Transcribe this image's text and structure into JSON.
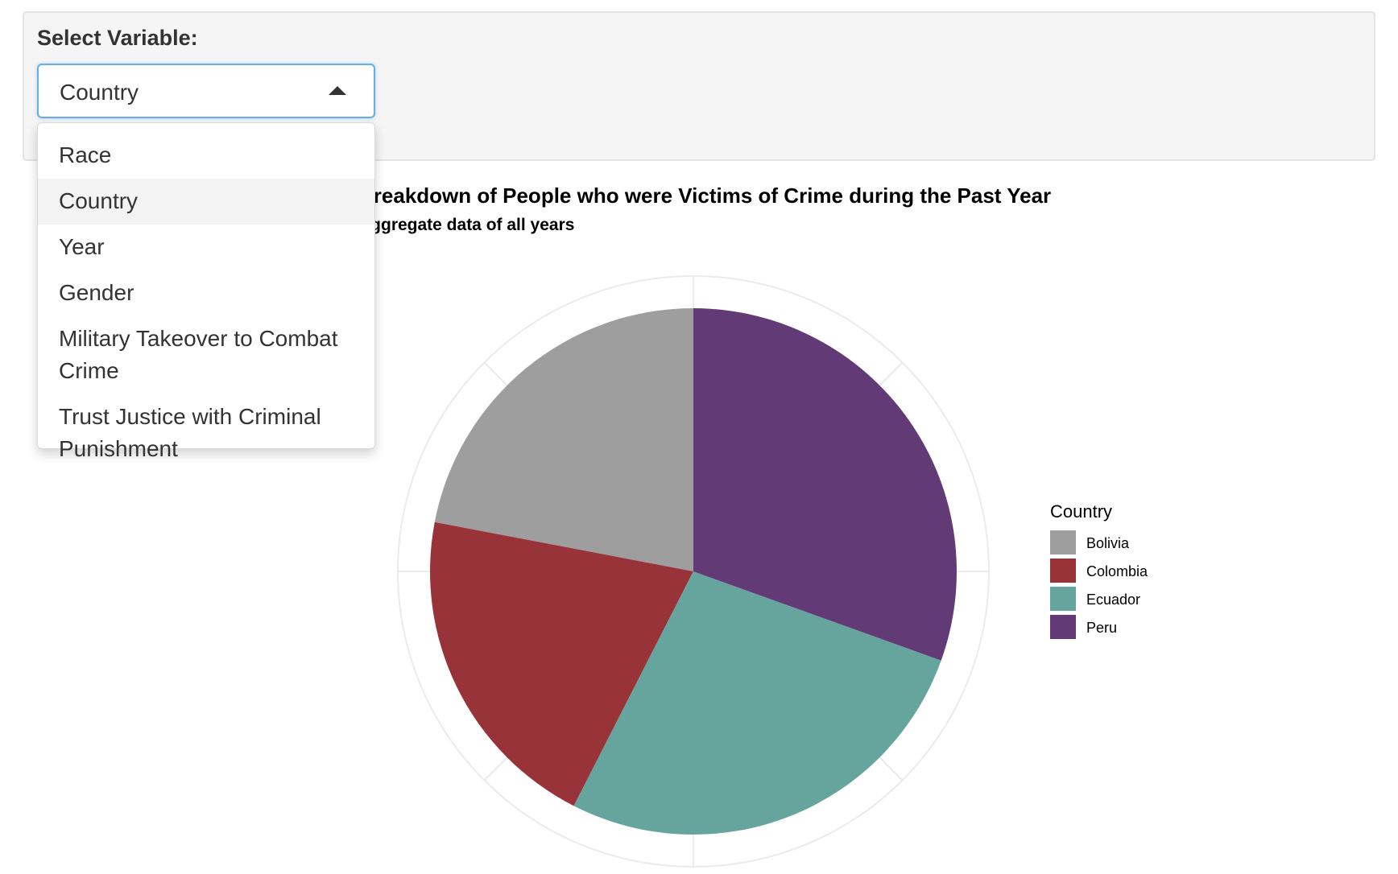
{
  "control": {
    "label": "Select Variable:",
    "selected": "Country",
    "options": [
      "Race",
      "Country",
      "Year",
      "Gender",
      "Military Takeover to Combat Crime",
      "Trust Justice with Criminal Punishment"
    ]
  },
  "chart_data": {
    "type": "pie",
    "title": "Breakdown of People who were Victims of Crime during the Past Year",
    "subtitle": "Aggregate data of all years",
    "legend_title": "Country",
    "legend_position": "right",
    "categories": [
      "Bolivia",
      "Colombia",
      "Ecuador",
      "Peru"
    ],
    "values": [
      22.0,
      20.5,
      27.0,
      30.5
    ],
    "colors": [
      "#9e9e9e",
      "#983439",
      "#66a59e",
      "#623b76"
    ]
  }
}
